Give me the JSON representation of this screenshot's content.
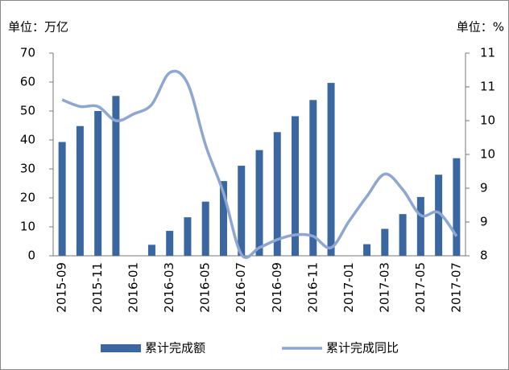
{
  "chart_data": {
    "type": "bar_line",
    "y_label": "单位：万亿",
    "y2_label": "单位：%",
    "categories": [
      "2015-09",
      null,
      "2015-11",
      null,
      "2016-01",
      null,
      "2016-03",
      null,
      "2016-05",
      null,
      "2016-07",
      null,
      "2016-09",
      null,
      "2016-11",
      null,
      "2017-01",
      null,
      "2017-03",
      null,
      "2017-05",
      null,
      "2017-07"
    ],
    "series": [
      {
        "name": "累计完成额",
        "type": "bar",
        "color": "#3b67a0",
        "values": [
          39.3,
          44.8,
          50.0,
          55.2,
          null,
          3.8,
          8.6,
          13.3,
          18.7,
          25.8,
          31.1,
          36.5,
          42.7,
          48.2,
          53.8,
          59.7,
          null,
          4.0,
          9.3,
          14.4,
          20.3,
          28.0,
          33.7
        ]
      },
      {
        "name": "累计完成同比",
        "type": "line",
        "axis": "y2",
        "color": "#8ea6d2",
        "values": [
          10.31,
          10.21,
          10.21,
          10.0,
          10.1,
          10.24,
          10.71,
          10.55,
          9.64,
          8.93,
          8.02,
          8.12,
          8.24,
          8.31,
          8.29,
          8.12,
          8.51,
          8.88,
          9.21,
          8.98,
          8.6,
          8.64,
          8.29
        ]
      }
    ],
    "ylim": [
      0,
      70
    ],
    "yticks": [
      0,
      10,
      20,
      30,
      40,
      50,
      60,
      70
    ],
    "y2lim": [
      8,
      11
    ],
    "y2ticks": [
      8,
      {
        "value": 8.5,
        "label": "9"
      },
      9,
      {
        "value": 9.5,
        "label": "10"
      },
      10,
      {
        "value": 10.5,
        "label": "11"
      },
      11
    ],
    "grid": false,
    "legend": "bottom"
  }
}
